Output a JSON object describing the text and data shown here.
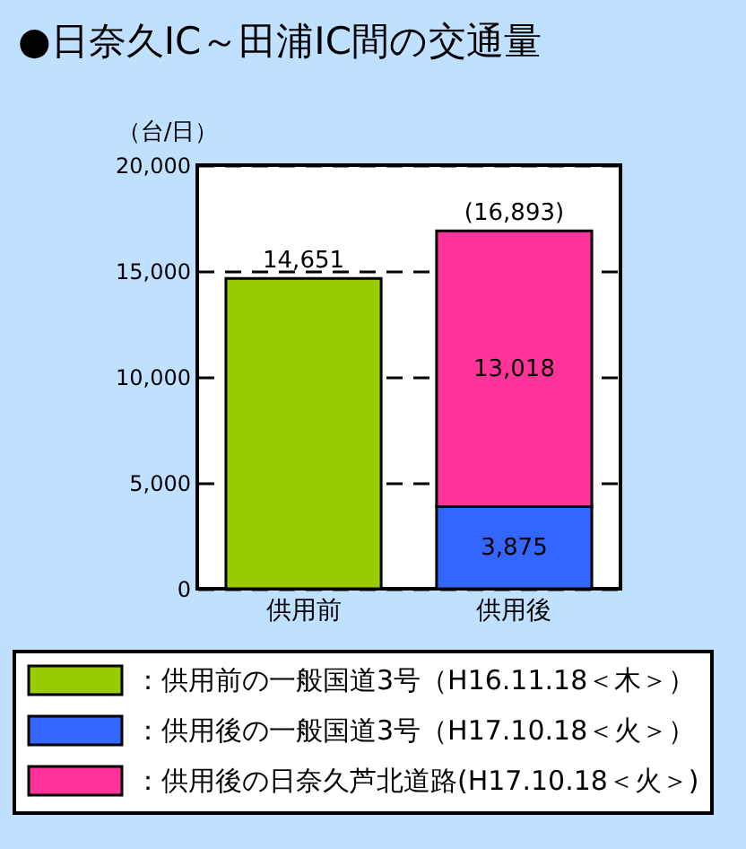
{
  "chart_data": {
    "type": "bar",
    "title": "●日奈久IC～田浦IC間の交通量",
    "ylabel": "（台/日）",
    "categories": [
      "供用前",
      "供用後"
    ],
    "series": [
      {
        "name": "：供用前の一般国道3号（H16.11.18＜木＞）",
        "color": "#99cc00",
        "values": [
          14651,
          null
        ]
      },
      {
        "name": "：供用後の一般国道3号（H17.10.18＜火＞）",
        "color": "#3366ff",
        "values": [
          null,
          3875
        ],
        "value_labels": [
          null,
          "3,875"
        ]
      },
      {
        "name": "：供用後の日奈久芦北道路(H17.10.18＜火＞)",
        "color": "#ff3399",
        "values": [
          null,
          13018
        ],
        "value_labels": [
          null,
          "13,018"
        ]
      }
    ],
    "stacked": true,
    "totals": [
      "14,651",
      "(16,893)"
    ],
    "ylim": [
      0,
      20000
    ],
    "yticks": [
      0,
      {
        "value": 5000,
        "label": "5,000"
      },
      {
        "value": 10000,
        "label": "10,000"
      },
      {
        "value": 15000,
        "label": "15,000"
      },
      {
        "value": 20000,
        "label": "20,000"
      }
    ],
    "grid": "y",
    "legend": "bottom"
  }
}
